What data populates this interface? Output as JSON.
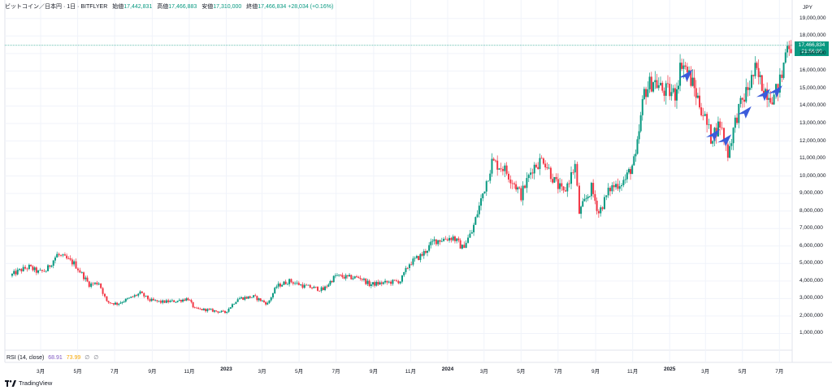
{
  "header": {
    "symbol": "ビットコイン／日本円 · 1日 · BITFLYER",
    "open_label": "始値",
    "open_value": "17,442,831",
    "high_label": "高値",
    "high_value": "17,466,883",
    "low_label": "安値",
    "low_value": "17,310,000",
    "close_label": "終値",
    "close_value": "17,466,834",
    "change": "+28,034 (+0.16%)"
  },
  "rsi": {
    "label": "RSI (14, close)",
    "v1": "68.91",
    "v2": "73.99",
    "v3": "∅",
    "v4": "∅"
  },
  "currency": "JPY",
  "price_tag": {
    "price": "17,466,834",
    "countdown": "21:56:30"
  },
  "brand": "TradingView",
  "colors": {
    "up": "#089981",
    "down": "#f23645",
    "arrow": "#3b5bdb",
    "grid": "#f0f3fa"
  },
  "chart_data": {
    "type": "candlestick",
    "y_ticks": [
      "19,000,000",
      "18,000,000",
      "17,000,000",
      "16,000,000",
      "15,000,000",
      "14,000,000",
      "13,000,000",
      "12,000,000",
      "11,000,000",
      "10,000,000",
      "9,000,000",
      "8,000,000",
      "7,000,000",
      "6,000,000",
      "5,000,000",
      "4,000,000",
      "3,000,000",
      "2,000,000",
      "1,000,000"
    ],
    "x_ticks": [
      {
        "label": "3月",
        "date": "2022-03-01"
      },
      {
        "label": "5月",
        "date": "2022-05-01"
      },
      {
        "label": "7月",
        "date": "2022-07-01"
      },
      {
        "label": "9月",
        "date": "2022-09-01"
      },
      {
        "label": "11月",
        "date": "2022-11-01"
      },
      {
        "label": "2023",
        "date": "2023-01-01",
        "year": true
      },
      {
        "label": "3月",
        "date": "2023-03-01"
      },
      {
        "label": "5月",
        "date": "2023-05-01"
      },
      {
        "label": "7月",
        "date": "2023-07-01"
      },
      {
        "label": "9月",
        "date": "2023-09-01"
      },
      {
        "label": "11月",
        "date": "2023-11-01"
      },
      {
        "label": "2024",
        "date": "2024-01-01",
        "year": true
      },
      {
        "label": "3月",
        "date": "2024-03-01"
      },
      {
        "label": "5月",
        "date": "2024-05-01"
      },
      {
        "label": "7月",
        "date": "2024-07-01"
      },
      {
        "label": "9月",
        "date": "2024-09-01"
      },
      {
        "label": "11月",
        "date": "2024-11-01"
      },
      {
        "label": "2025",
        "date": "2025-01-01",
        "year": true
      },
      {
        "label": "3月",
        "date": "2025-03-01"
      },
      {
        "label": "5月",
        "date": "2025-05-01"
      },
      {
        "label": "7月",
        "date": "2025-07-01"
      }
    ],
    "series": [
      {
        "date": "2022-01-10",
        "close": 4300000
      },
      {
        "date": "2022-01-25",
        "close": 4600000
      },
      {
        "date": "2022-02-10",
        "close": 4800000
      },
      {
        "date": "2022-02-25",
        "close": 4500000
      },
      {
        "date": "2022-03-10",
        "close": 4600000
      },
      {
        "date": "2022-03-28",
        "close": 5500000
      },
      {
        "date": "2022-04-10",
        "close": 5300000
      },
      {
        "date": "2022-04-25",
        "close": 5000000
      },
      {
        "date": "2022-05-08",
        "close": 4400000
      },
      {
        "date": "2022-05-20",
        "close": 3800000
      },
      {
        "date": "2022-06-05",
        "close": 3900000
      },
      {
        "date": "2022-06-18",
        "close": 2800000
      },
      {
        "date": "2022-07-05",
        "close": 2700000
      },
      {
        "date": "2022-07-25",
        "close": 3000000
      },
      {
        "date": "2022-08-12",
        "close": 3300000
      },
      {
        "date": "2022-08-28",
        "close": 2900000
      },
      {
        "date": "2022-09-15",
        "close": 2800000
      },
      {
        "date": "2022-10-10",
        "close": 2850000
      },
      {
        "date": "2022-10-30",
        "close": 3000000
      },
      {
        "date": "2022-11-10",
        "close": 2400000
      },
      {
        "date": "2022-12-01",
        "close": 2350000
      },
      {
        "date": "2022-12-30",
        "close": 2200000
      },
      {
        "date": "2023-01-20",
        "close": 3000000
      },
      {
        "date": "2023-02-15",
        "close": 3100000
      },
      {
        "date": "2023-03-10",
        "close": 2700000
      },
      {
        "date": "2023-03-25",
        "close": 3700000
      },
      {
        "date": "2023-04-15",
        "close": 4000000
      },
      {
        "date": "2023-05-10",
        "close": 3700000
      },
      {
        "date": "2023-06-10",
        "close": 3500000
      },
      {
        "date": "2023-06-30",
        "close": 4300000
      },
      {
        "date": "2023-07-20",
        "close": 4200000
      },
      {
        "date": "2023-08-10",
        "close": 4200000
      },
      {
        "date": "2023-08-25",
        "close": 3800000
      },
      {
        "date": "2023-09-20",
        "close": 3900000
      },
      {
        "date": "2023-10-15",
        "close": 4000000
      },
      {
        "date": "2023-10-30",
        "close": 5000000
      },
      {
        "date": "2023-11-20",
        "close": 5500000
      },
      {
        "date": "2023-12-10",
        "close": 6300000
      },
      {
        "date": "2024-01-10",
        "close": 6500000
      },
      {
        "date": "2024-01-25",
        "close": 5900000
      },
      {
        "date": "2024-02-10",
        "close": 6800000
      },
      {
        "date": "2024-02-28",
        "close": 9000000
      },
      {
        "date": "2024-03-14",
        "close": 10800000
      },
      {
        "date": "2024-04-01",
        "close": 10500000
      },
      {
        "date": "2024-04-20",
        "close": 9600000
      },
      {
        "date": "2024-05-01",
        "close": 8900000
      },
      {
        "date": "2024-05-20",
        "close": 10500000
      },
      {
        "date": "2024-06-07",
        "close": 11000000
      },
      {
        "date": "2024-06-25",
        "close": 9700000
      },
      {
        "date": "2024-07-10",
        "close": 9000000
      },
      {
        "date": "2024-07-29",
        "close": 10600000
      },
      {
        "date": "2024-08-05",
        "close": 7900000
      },
      {
        "date": "2024-08-25",
        "close": 9300000
      },
      {
        "date": "2024-09-06",
        "close": 7900000
      },
      {
        "date": "2024-09-25",
        "close": 9300000
      },
      {
        "date": "2024-10-20",
        "close": 9800000
      },
      {
        "date": "2024-11-06",
        "close": 11000000
      },
      {
        "date": "2024-11-20",
        "close": 14800000
      },
      {
        "date": "2024-12-05",
        "close": 15500000
      },
      {
        "date": "2024-12-20",
        "close": 14900000
      },
      {
        "date": "2025-01-10",
        "close": 14700000
      },
      {
        "date": "2025-01-21",
        "close": 16600000
      },
      {
        "date": "2025-02-05",
        "close": 15500000
      },
      {
        "date": "2025-02-25",
        "close": 13600000
      },
      {
        "date": "2025-03-10",
        "close": 12200000
      },
      {
        "date": "2025-03-25",
        "close": 13000000
      },
      {
        "date": "2025-04-07",
        "close": 11300000
      },
      {
        "date": "2025-04-22",
        "close": 13500000
      },
      {
        "date": "2025-05-10",
        "close": 15000000
      },
      {
        "date": "2025-05-22",
        "close": 16000000
      },
      {
        "date": "2025-06-05",
        "close": 15000000
      },
      {
        "date": "2025-06-22",
        "close": 14500000
      },
      {
        "date": "2025-07-05",
        "close": 15700000
      },
      {
        "date": "2025-07-14",
        "close": 17800000
      },
      {
        "date": "2025-07-20",
        "close": 17466834
      }
    ],
    "current_price": 17466834,
    "y_range": [
      0,
      19500000
    ],
    "x_range": [
      "2022-01-01",
      "2025-07-22"
    ],
    "arrows": [
      {
        "date": "2025-01-28",
        "price": 15800000
      },
      {
        "date": "2025-03-14",
        "price": 12400000
      },
      {
        "date": "2025-04-02",
        "price": 12100000
      },
      {
        "date": "2025-05-05",
        "price": 13700000
      },
      {
        "date": "2025-06-05",
        "price": 14700000
      },
      {
        "date": "2025-06-25",
        "price": 14900000
      }
    ]
  }
}
